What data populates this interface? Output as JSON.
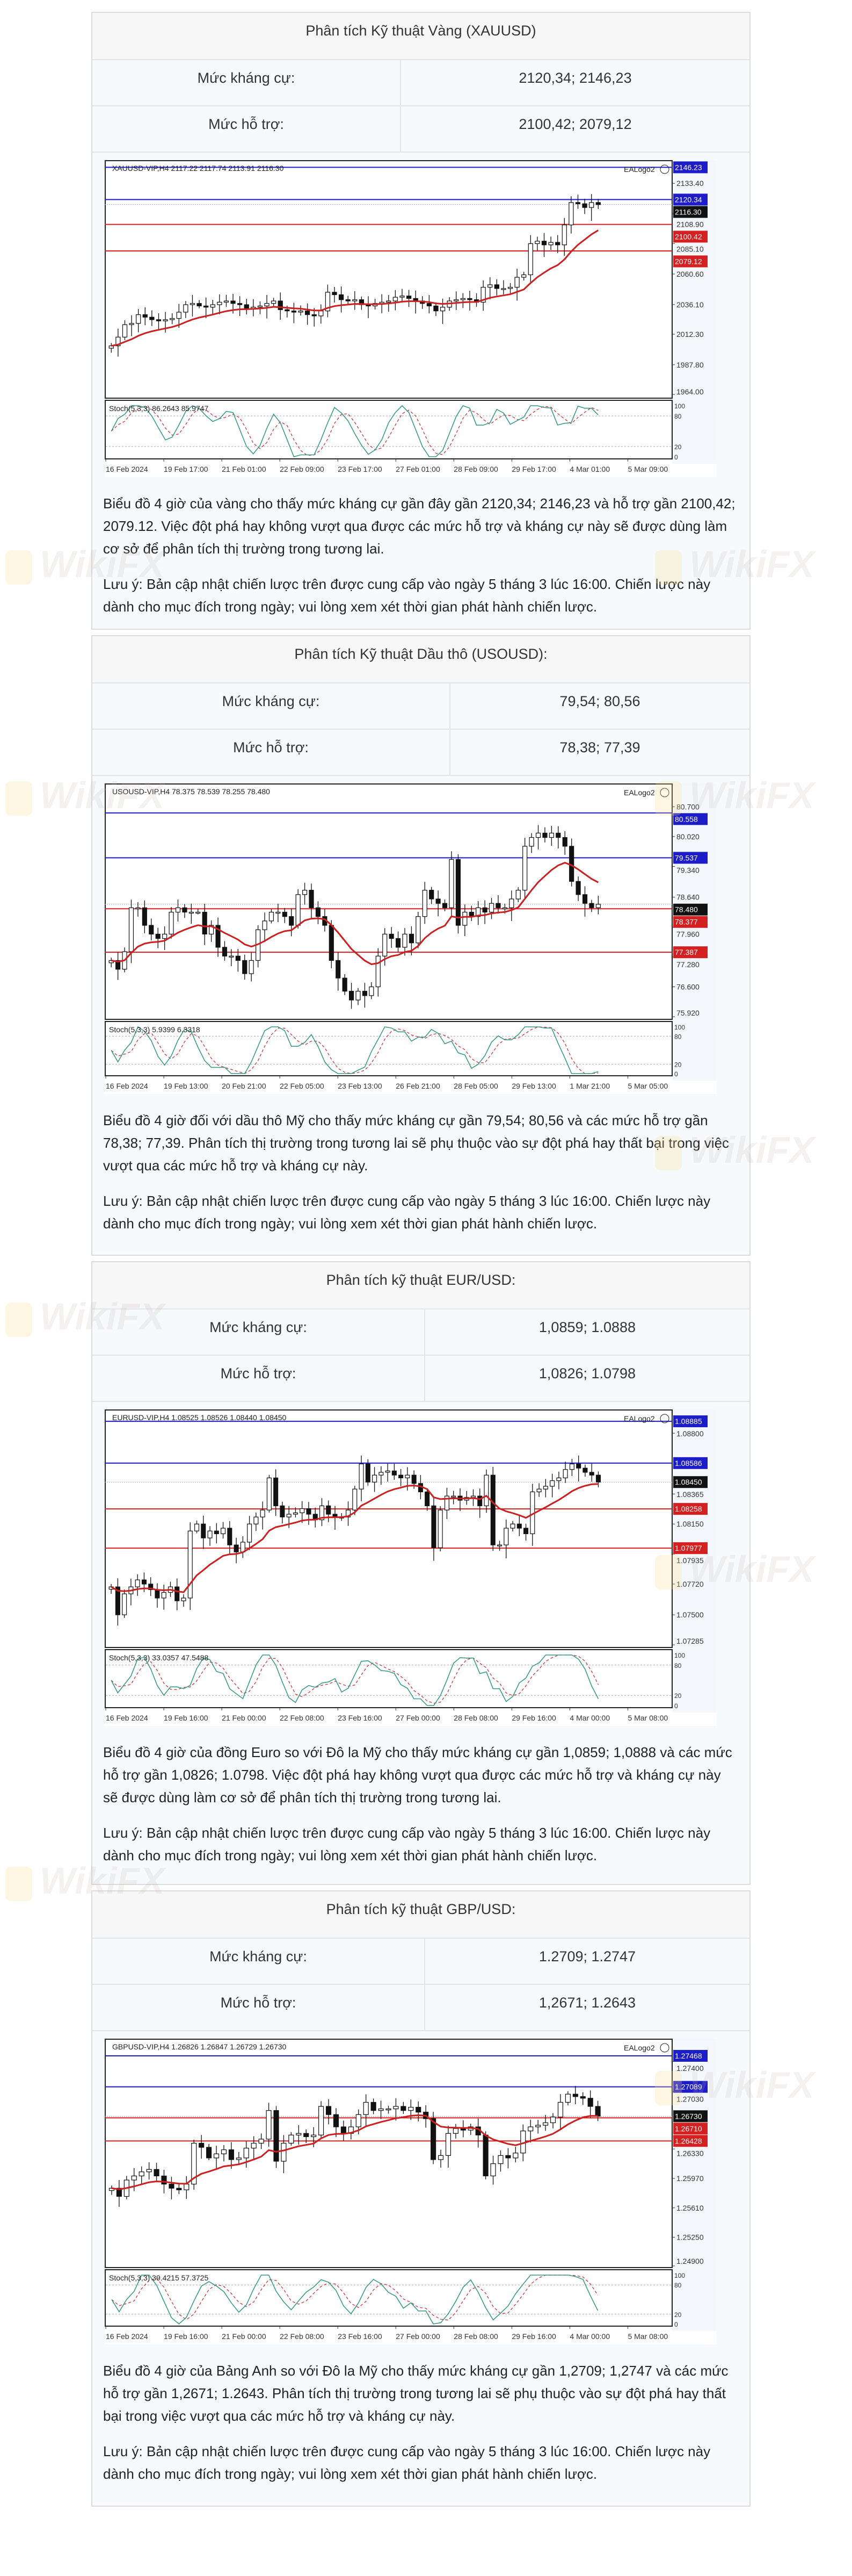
{
  "watermark": "WikiFX",
  "sections": [
    {
      "title": "Phân tích Kỹ thuật Vàng (XAUUSD)",
      "resistance_label": "Mức kháng cự:",
      "resistance_value": "2120,34; 2146,23",
      "support_label": "Mức hỗ trợ:",
      "support_value": "2100,42; 2079,12",
      "paragraph": "Biểu đồ 4 giờ của vàng cho thấy mức kháng cự gần đây gần 2120,34; 2146,23 và hỗ trợ gần 2100,42; 2079.12. Việc đột phá hay không vượt qua được các mức hỗ trợ và kháng cự này sẽ được dùng làm cơ sở để phân tích thị trường trong tương lai.",
      "note": "Lưu ý: Bản cập nhật chiến lược trên được cung cấp vào ngày 5 tháng 3 lúc 16:00. Chiến lược này dành cho mục đích trong ngày; vui lòng xem xét thời gian phát hành chiến lược."
    },
    {
      "title": "Phân tích Kỹ thuật Dầu thô (USOUSD):",
      "resistance_label": "Mức kháng cự:",
      "resistance_value": "79,54; 80,56",
      "support_label": "Mức hỗ trợ:",
      "support_value": "78,38; 77,39",
      "paragraph": "Biểu đồ 4 giờ đối với dầu thô Mỹ cho thấy mức kháng cự gần 79,54; 80,56 và các mức hỗ trợ gần 78,38; 77,39. Phân tích thị trường trong tương lai sẽ phụ thuộc vào sự đột phá hay thất bại trong việc vượt qua các mức hỗ trợ và kháng cự này.",
      "note": "Lưu ý: Bản cập nhật chiến lược trên được cung cấp vào ngày 5 tháng 3 lúc 16:00. Chiến lược này dành cho mục đích trong ngày; vui lòng xem xét thời gian phát hành chiến lược."
    },
    {
      "title": "Phân tích kỹ thuật EUR/USD:",
      "resistance_label": "Mức kháng cự:",
      "resistance_value": "1,0859; 1.0888",
      "support_label": "Mức hỗ trợ:",
      "support_value": "1,0826; 1.0798",
      "paragraph": "Biểu đồ 4 giờ của đồng Euro so với Đô la Mỹ cho thấy mức kháng cự gần 1,0859; 1,0888 và các mức hỗ trợ gần 1,0826; 1.0798. Việc đột phá hay không vượt qua được các mức hỗ trợ và kháng cự này sẽ được dùng làm cơ sở để phân tích thị trường trong tương lai.",
      "note": "Lưu ý: Bản cập nhật chiến lược trên được cung cấp vào ngày 5 tháng 3 lúc 16:00. Chiến lược này dành cho mục đích trong ngày; vui lòng xem xét thời gian phát hành chiến lược."
    },
    {
      "title": "Phân tích kỹ thuật GBP/USD:",
      "resistance_label": "Mức kháng cự:",
      "resistance_value": "1.2709; 1.2747",
      "support_label": "Mức hỗ trợ:",
      "support_value": "1,2671; 1.2643",
      "paragraph": "Biểu đồ 4 giờ của Bảng Anh so với Đô la Mỹ cho thấy mức kháng cự gần 1,2709; 1,2747 và các mức hỗ trợ gần 1,2671; 1.2643. Phân tích thị trường trong tương lai sẽ phụ thuộc vào sự đột phá hay thất bại trong việc vượt qua các mức hỗ trợ và kháng cự này.",
      "note": "Lưu ý: Bản cập nhật chiến lược trên được cung cấp vào ngày 5 tháng 3 lúc 16:00. Chiến lược này dành cho mục đích trong ngày; vui lòng xem xét thời gian phát hành chiến lược."
    }
  ],
  "chart_data": [
    {
      "type": "candlestick",
      "header": "XAUUSD-VIP,H4  2117.22 2117.74 2113.91 2116.30",
      "logo": "EALogo2",
      "stoch_label": "Stoch(5,3,3) 86.2643 85.9747",
      "ylim": [
        1961,
        2152
      ],
      "yticks": [
        "2133.40",
        "2108.90",
        "2085.10",
        "2060.60",
        "2036.10",
        "2012.30",
        "1987.80",
        "1964.00"
      ],
      "resistance": [
        "2146.23",
        "2120.34"
      ],
      "support": [
        "2100.42",
        "2079.12"
      ],
      "current": "2116.30",
      "stoch_ticks": [
        "100",
        "80",
        "20",
        "0"
      ],
      "xticks": [
        "16 Feb 2024",
        "19 Feb 17:00",
        "21 Feb 01:00",
        "22 Feb 09:00",
        "23 Feb 17:00",
        "27 Feb 01:00",
        "28 Feb 09:00",
        "29 Feb 17:00",
        "4 Mar 01:00",
        "5 Mar 09:00"
      ],
      "closes": [
        2003,
        2010,
        2020,
        2021,
        2028,
        2026,
        2024,
        2023,
        2024,
        2025,
        2030,
        2036,
        2037,
        2035,
        2034,
        2036,
        2038,
        2039,
        2037,
        2036,
        2033,
        2034,
        2035,
        2037,
        2039,
        2032,
        2031,
        2030,
        2031,
        2028,
        2027,
        2031,
        2046,
        2044,
        2040,
        2039,
        2040,
        2036,
        2035,
        2037,
        2038,
        2039,
        2042,
        2043,
        2041,
        2039,
        2037,
        2035,
        2031,
        2034,
        2039,
        2040,
        2041,
        2040,
        2038,
        2050,
        2052,
        2049,
        2049,
        2050,
        2058,
        2060,
        2085,
        2087,
        2084,
        2086,
        2084,
        2100,
        2118,
        2117,
        2114,
        2118,
        2116.3
      ]
    },
    {
      "type": "candlestick",
      "header": "USOUSD-VIP,H4  78.375 78.539 78.255 78.480",
      "logo": "EALogo2",
      "stoch_label": "Stoch(5,3,3) 5.9399 6.3318",
      "ylim": [
        75.86,
        81.23
      ],
      "yticks": [
        "80.700",
        "80.020",
        "79.340",
        "78.640",
        "77.960",
        "77.280",
        "76.600",
        "75.920"
      ],
      "resistance": [
        "80.558",
        "79.537"
      ],
      "support": [
        "78.377",
        "77.387"
      ],
      "current": "78.480",
      "stoch_ticks": [
        "100",
        "80",
        "20",
        "0"
      ],
      "xticks": [
        "16 Feb 2024",
        "19 Feb 13:00",
        "20 Feb 21:00",
        "22 Feb 05:00",
        "23 Feb 13:00",
        "26 Feb 21:00",
        "28 Feb 05:00",
        "29 Feb 13:00",
        "1 Mar 21:00",
        "5 Mar 05:00"
      ],
      "closes": [
        77.2,
        77.0,
        77.4,
        78.4,
        78.4,
        78.0,
        77.8,
        77.7,
        77.8,
        78.3,
        78.4,
        78.3,
        78.3,
        78.3,
        77.8,
        78.0,
        77.5,
        77.3,
        77.3,
        77.2,
        76.9,
        77.2,
        77.9,
        78.1,
        78.3,
        78.3,
        78.2,
        78.0,
        78.7,
        78.8,
        78.4,
        78.2,
        78.0,
        77.2,
        76.8,
        76.5,
        76.3,
        76.5,
        76.4,
        76.6,
        77.3,
        77.8,
        77.7,
        77.5,
        77.8,
        77.6,
        78.2,
        78.8,
        78.6,
        78.5,
        78.4,
        79.5,
        78.0,
        78.3,
        78.2,
        78.4,
        78.3,
        78.5,
        78.4,
        78.4,
        78.6,
        78.8,
        79.8,
        80.0,
        80.1,
        80.0,
        80.1,
        80.0,
        79.8,
        79.0,
        78.7,
        78.5,
        78.4,
        78.48
      ]
    },
    {
      "type": "candlestick",
      "header": "EURUSD-VIP,H4  1.08525 1.08526 1.08440 1.08450",
      "logo": "EALogo2",
      "stoch_label": "Stoch(5,3,3) 33.0357 47.5488",
      "ylim": [
        1.07266,
        1.0897
      ],
      "yticks": [
        "1.08800",
        "1.08365",
        "1.08150",
        "1.07935",
        "1.07720",
        "1.07500",
        "1.07285"
      ],
      "resistance": [
        "1.08885",
        "1.08586"
      ],
      "support": [
        "1.08258",
        "1.07977"
      ],
      "current": "1.08450",
      "stoch_ticks": [
        "100",
        "80",
        "20",
        "0"
      ],
      "xticks": [
        "16 Feb 2024",
        "19 Feb 16:00",
        "21 Feb 00:00",
        "22 Feb 08:00",
        "23 Feb 16:00",
        "27 Feb 00:00",
        "28 Feb 08:00",
        "29 Feb 16:00",
        "4 Mar 00:00",
        "5 Mar 08:00"
      ],
      "closes": [
        1.077,
        1.075,
        1.0765,
        1.077,
        1.0775,
        1.0772,
        1.0768,
        1.0762,
        1.0766,
        1.077,
        1.076,
        1.0762,
        1.081,
        1.0815,
        1.0805,
        1.081,
        1.0808,
        1.0812,
        1.08,
        1.0795,
        1.0802,
        1.0815,
        1.082,
        1.0825,
        1.0848,
        1.0828,
        1.082,
        1.0822,
        1.0823,
        1.0826,
        1.0822,
        1.0818,
        1.0828,
        1.0822,
        1.082,
        1.082,
        1.0825,
        1.084,
        1.0858,
        1.0845,
        1.085,
        1.0852,
        1.0853,
        1.085,
        1.0848,
        1.085,
        1.0844,
        1.0838,
        1.0828,
        1.0798,
        1.0825,
        1.0835,
        1.0835,
        1.0832,
        1.0834,
        1.0835,
        1.0828,
        1.085,
        1.08,
        1.08,
        1.0812,
        1.0815,
        1.0812,
        1.0808,
        1.0838,
        1.084,
        1.0842,
        1.0846,
        1.0848,
        1.0854,
        1.0858,
        1.0855,
        1.0852,
        1.085,
        1.0845
      ]
    },
    {
      "type": "candlestick",
      "header": "GBPUSD-VIP,H4  1.26826 1.26847 1.26729 1.26730",
      "logo": "EALogo2",
      "stoch_label": "Stoch(5,3,3) 39.4215 57.3725",
      "ylim": [
        1.2488,
        1.27678
      ],
      "yticks": [
        "1.27400",
        "1.27030",
        "1.26330",
        "1.25970",
        "1.25610",
        "1.25250",
        "1.24900"
      ],
      "resistance": [
        "1.27468",
        "1.27089"
      ],
      "support": [
        "1.26710",
        "1.26428"
      ],
      "current": "1.26730",
      "stoch_ticks": [
        "100",
        "80",
        "20",
        "0"
      ],
      "xticks": [
        "16 Feb 2024",
        "19 Feb 16:00",
        "21 Feb 00:00",
        "22 Feb 08:00",
        "23 Feb 16:00",
        "27 Feb 00:00",
        "28 Feb 08:00",
        "29 Feb 16:00",
        "4 Mar 00:00",
        "5 Mar 08:00"
      ],
      "closes": [
        1.2585,
        1.2575,
        1.2595,
        1.26,
        1.2605,
        1.2608,
        1.26,
        1.259,
        1.2585,
        1.2583,
        1.259,
        1.264,
        1.2635,
        1.2622,
        1.2627,
        1.2632,
        1.262,
        1.2622,
        1.2634,
        1.264,
        1.2645,
        1.268,
        1.2618,
        1.264,
        1.265,
        1.2652,
        1.2648,
        1.265,
        1.2685,
        1.2675,
        1.266,
        1.2652,
        1.266,
        1.2675,
        1.269,
        1.268,
        1.2682,
        1.2682,
        1.2685,
        1.268,
        1.2684,
        1.2678,
        1.267,
        1.262,
        1.2625,
        1.2652,
        1.2658,
        1.2656,
        1.266,
        1.265,
        1.26,
        1.2615,
        1.2625,
        1.2622,
        1.2628,
        1.2655,
        1.266,
        1.2662,
        1.2665,
        1.2672,
        1.269,
        1.27,
        1.2697,
        1.2695,
        1.2685,
        1.2673
      ]
    }
  ],
  "colors": {
    "resistance": "#1c1cc8",
    "support": "#d42020",
    "moving_average": "#cc1f1f",
    "stoch_main": "#3a9a8a",
    "stoch_signal": "#cc3333"
  }
}
